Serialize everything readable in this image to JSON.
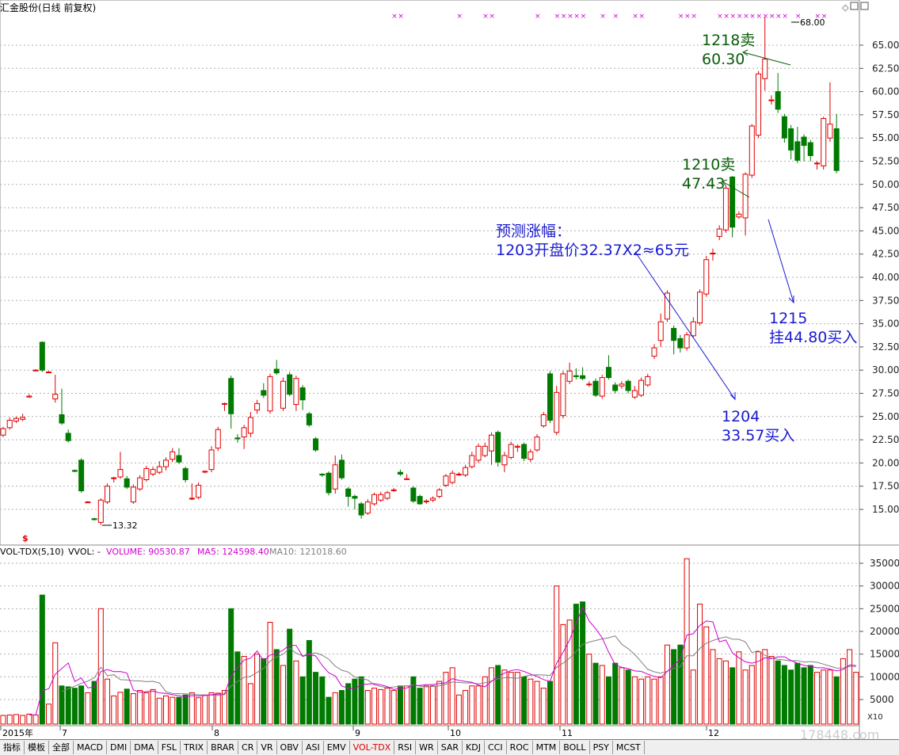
{
  "title": "汇金股份(日线 前复权)",
  "vol_header": {
    "name": "VOL-TDX(5,10)",
    "vvol": "VVOL: -",
    "volume": "VOLUME: 90530.87",
    "ma5": "MA5: 124598.40",
    "ma10": "MA10: 121018.60"
  },
  "price_axis": [
    "65.00",
    "62.50",
    "60.00",
    "57.50",
    "55.00",
    "52.50",
    "50.00",
    "47.50",
    "45.00",
    "42.50",
    "40.00",
    "37.50",
    "35.00",
    "32.50",
    "30.00",
    "27.50",
    "25.00",
    "22.50",
    "20.00",
    "17.50",
    "15.00"
  ],
  "vol_axis": [
    "35000",
    "30000",
    "25000",
    "20000",
    "15000",
    "10000",
    "5000"
  ],
  "vol_axis_unit": "X10",
  "month_labels": [
    "2015年",
    "7",
    "8",
    "9",
    "10",
    "11",
    "12"
  ],
  "price_labels": {
    "low": "13.32",
    "high": "68.00"
  },
  "annotations": {
    "a1218_l1": "1218卖",
    "a1218_l2": "60.30",
    "a1210_l1": "1210卖",
    "a1210_l2": "47.43",
    "pred_l1": "预测涨幅：",
    "pred_l2": "1203开盘价32.37X2≈65元",
    "a1215_l1": "1215",
    "a1215_l2": "挂44.80买入",
    "a1204_l1": "1204",
    "a1204_l2": "33.57买入"
  },
  "tabs": [
    "指标",
    "模板",
    "全部",
    "MACD",
    "DMI",
    "DMA",
    "FSL",
    "TRIX",
    "BRAR",
    "CR",
    "VR",
    "OBV",
    "ASI",
    "EMV",
    "VOL-TDX",
    "RSI",
    "WR",
    "SAR",
    "KDJ",
    "CCI",
    "ROC",
    "MTM",
    "BOLL",
    "PSY",
    "MCST"
  ],
  "active_tab": "VOL-TDX",
  "watermark": "178448.com",
  "colors": {
    "up": "#e00000",
    "down": "#007a00",
    "ma5": "#d000d0",
    "ma10": "#808080",
    "grid": "#b0b0b0"
  },
  "chart_data": [
    {
      "type": "candlestick",
      "title": "汇金股份(日线 前复权)",
      "ylim": [
        13,
        68
      ],
      "x": [
        "2015年",
        "7",
        "8",
        "9",
        "10",
        "11",
        "12"
      ],
      "candles": [
        {
          "o": 23.0,
          "c": 23.7,
          "h": 23.9,
          "l": 22.8
        },
        {
          "o": 23.8,
          "c": 24.6,
          "h": 24.9,
          "l": 23.6
        },
        {
          "o": 24.5,
          "c": 24.8,
          "h": 25.0,
          "l": 24.3
        },
        {
          "o": 24.7,
          "c": 24.9,
          "h": 25.3,
          "l": 24.5
        },
        {
          "o": 27.1,
          "c": 27.2,
          "h": 27.4,
          "l": 27.0
        },
        {
          "o": 30.0,
          "c": 30.0,
          "h": 30.1,
          "l": 29.9
        },
        {
          "o": 33.0,
          "c": 30.0,
          "h": 33.1,
          "l": 29.8
        },
        {
          "o": 29.8,
          "c": 29.8,
          "h": 29.9,
          "l": 29.7
        },
        {
          "o": 26.9,
          "c": 27.4,
          "h": 29.5,
          "l": 26.5
        },
        {
          "o": 25.2,
          "c": 24.3,
          "h": 28.0,
          "l": 24.1
        },
        {
          "o": 23.2,
          "c": 22.4,
          "h": 23.6,
          "l": 22.2
        },
        {
          "o": 19.2,
          "c": 19.1,
          "h": 19.3,
          "l": 19.0
        },
        {
          "o": 20.3,
          "c": 17.0,
          "h": 20.5,
          "l": 16.8
        },
        {
          "o": 15.8,
          "c": 15.8,
          "h": 15.9,
          "l": 15.7
        },
        {
          "o": 14.0,
          "c": 13.9,
          "h": 14.1,
          "l": 13.8
        },
        {
          "o": 13.6,
          "c": 16.0,
          "h": 16.2,
          "l": 13.32
        },
        {
          "o": 15.8,
          "c": 17.5,
          "h": 17.8,
          "l": 15.6
        },
        {
          "o": 18.4,
          "c": 18.4,
          "h": 18.5,
          "l": 17.9
        },
        {
          "o": 18.5,
          "c": 19.3,
          "h": 21.2,
          "l": 18.3
        },
        {
          "o": 18.3,
          "c": 17.4,
          "h": 18.6,
          "l": 17.2
        },
        {
          "o": 15.8,
          "c": 17.4,
          "h": 17.7,
          "l": 15.6
        },
        {
          "o": 17.2,
          "c": 18.4,
          "h": 18.7,
          "l": 17.0
        },
        {
          "o": 18.2,
          "c": 19.4,
          "h": 19.7,
          "l": 18.0
        },
        {
          "o": 18.8,
          "c": 19.3,
          "h": 19.6,
          "l": 18.6
        },
        {
          "o": 19.0,
          "c": 19.6,
          "h": 20.2,
          "l": 18.8
        },
        {
          "o": 19.6,
          "c": 20.3,
          "h": 20.6,
          "l": 19.2
        },
        {
          "o": 20.4,
          "c": 21.2,
          "h": 21.6,
          "l": 20.1
        },
        {
          "o": 20.8,
          "c": 20.1,
          "h": 21.6,
          "l": 19.9
        },
        {
          "o": 19.4,
          "c": 18.2,
          "h": 19.6,
          "l": 17.9
        },
        {
          "o": 16.2,
          "c": 16.2,
          "h": 17.8,
          "l": 16.0
        },
        {
          "o": 16.3,
          "c": 17.6,
          "h": 17.9,
          "l": 16.1
        },
        {
          "o": 19.1,
          "c": 19.1,
          "h": 19.2,
          "l": 18.9
        },
        {
          "o": 19.3,
          "c": 21.4,
          "h": 21.8,
          "l": 19.0
        },
        {
          "o": 21.6,
          "c": 23.6,
          "h": 23.9,
          "l": 21.3
        },
        {
          "o": 26.4,
          "c": 26.4,
          "h": 26.5,
          "l": 25.6
        },
        {
          "o": 29.1,
          "c": 25.3,
          "h": 29.4,
          "l": 23.7
        },
        {
          "o": 22.7,
          "c": 22.6,
          "h": 23.1,
          "l": 22.2
        },
        {
          "o": 22.8,
          "c": 23.8,
          "h": 24.1,
          "l": 21.5
        },
        {
          "o": 23.2,
          "c": 24.9,
          "h": 25.5,
          "l": 22.8
        },
        {
          "o": 25.7,
          "c": 26.4,
          "h": 26.8,
          "l": 25.3
        },
        {
          "o": 27.8,
          "c": 27.3,
          "h": 28.6,
          "l": 27.0
        },
        {
          "o": 25.6,
          "c": 29.3,
          "h": 29.6,
          "l": 25.3
        },
        {
          "o": 30.1,
          "c": 29.7,
          "h": 31.1,
          "l": 29.5
        },
        {
          "o": 25.9,
          "c": 28.8,
          "h": 29.2,
          "l": 25.6
        },
        {
          "o": 29.5,
          "c": 27.4,
          "h": 29.8,
          "l": 27.2
        },
        {
          "o": 26.3,
          "c": 29.1,
          "h": 29.4,
          "l": 25.6
        },
        {
          "o": 28.1,
          "c": 26.8,
          "h": 28.4,
          "l": 25.7
        },
        {
          "o": 25.3,
          "c": 24.1,
          "h": 25.5,
          "l": 23.9
        },
        {
          "o": 22.6,
          "c": 21.4,
          "h": 22.8,
          "l": 21.2
        },
        {
          "o": 18.8,
          "c": 18.7,
          "h": 18.9,
          "l": 18.5
        },
        {
          "o": 18.9,
          "c": 16.8,
          "h": 19.1,
          "l": 16.5
        },
        {
          "o": 17.2,
          "c": 19.8,
          "h": 20.8,
          "l": 16.7
        },
        {
          "o": 20.3,
          "c": 18.4,
          "h": 20.9,
          "l": 18.2
        },
        {
          "o": 17.2,
          "c": 16.4,
          "h": 17.4,
          "l": 15.3
        },
        {
          "o": 16.4,
          "c": 16.2,
          "h": 16.6,
          "l": 15.0
        },
        {
          "o": 15.6,
          "c": 14.4,
          "h": 15.8,
          "l": 14.0
        },
        {
          "o": 14.6,
          "c": 15.8,
          "h": 16.1,
          "l": 14.4
        },
        {
          "o": 15.6,
          "c": 16.6,
          "h": 16.8,
          "l": 15.4
        },
        {
          "o": 16.0,
          "c": 16.6,
          "h": 16.9,
          "l": 15.8
        },
        {
          "o": 16.2,
          "c": 16.8,
          "h": 17.0,
          "l": 16.0
        },
        {
          "o": 17.1,
          "c": 17.1,
          "h": 17.3,
          "l": 16.9
        },
        {
          "o": 19.0,
          "c": 18.8,
          "h": 19.3,
          "l": 18.6
        },
        {
          "o": 18.3,
          "c": 18.3,
          "h": 18.8,
          "l": 18.2
        },
        {
          "o": 17.3,
          "c": 15.9,
          "h": 17.5,
          "l": 15.7
        },
        {
          "o": 16.4,
          "c": 15.6,
          "h": 16.6,
          "l": 15.5
        },
        {
          "o": 15.9,
          "c": 15.9,
          "h": 16.1,
          "l": 15.6
        },
        {
          "o": 16.0,
          "c": 16.2,
          "h": 16.4,
          "l": 15.8
        },
        {
          "o": 16.4,
          "c": 17.1,
          "h": 17.3,
          "l": 16.2
        },
        {
          "o": 17.6,
          "c": 18.6,
          "h": 18.8,
          "l": 17.4
        },
        {
          "o": 17.9,
          "c": 18.9,
          "h": 19.2,
          "l": 17.7
        },
        {
          "o": 18.8,
          "c": 18.8,
          "h": 19.0,
          "l": 18.6
        },
        {
          "o": 18.7,
          "c": 19.5,
          "h": 19.8,
          "l": 18.5
        },
        {
          "o": 19.6,
          "c": 20.8,
          "h": 21.2,
          "l": 19.4
        },
        {
          "o": 20.3,
          "c": 21.8,
          "h": 22.1,
          "l": 20.0
        },
        {
          "o": 20.8,
          "c": 21.8,
          "h": 22.2,
          "l": 20.6
        },
        {
          "o": 21.3,
          "c": 23.0,
          "h": 23.3,
          "l": 19.8
        },
        {
          "o": 23.3,
          "c": 20.1,
          "h": 23.5,
          "l": 19.6
        },
        {
          "o": 19.8,
          "c": 20.8,
          "h": 21.2,
          "l": 19.0
        },
        {
          "o": 20.6,
          "c": 22.0,
          "h": 22.3,
          "l": 20.4
        },
        {
          "o": 21.7,
          "c": 21.8,
          "h": 22.0,
          "l": 21.2
        },
        {
          "o": 22.0,
          "c": 20.5,
          "h": 22.2,
          "l": 20.2
        },
        {
          "o": 20.4,
          "c": 21.2,
          "h": 21.5,
          "l": 20.1
        },
        {
          "o": 21.4,
          "c": 22.8,
          "h": 23.1,
          "l": 21.2
        },
        {
          "o": 24.0,
          "c": 25.2,
          "h": 25.5,
          "l": 23.8
        },
        {
          "o": 29.6,
          "c": 24.6,
          "h": 29.9,
          "l": 24.3
        },
        {
          "o": 23.3,
          "c": 27.6,
          "h": 28.3,
          "l": 23.0
        },
        {
          "o": 25.1,
          "c": 29.6,
          "h": 29.9,
          "l": 24.8
        },
        {
          "o": 28.8,
          "c": 29.9,
          "h": 30.8,
          "l": 28.5
        },
        {
          "o": 29.4,
          "c": 29.3,
          "h": 30.2,
          "l": 29.0
        },
        {
          "o": 29.4,
          "c": 29.1,
          "h": 30.3,
          "l": 28.9
        },
        {
          "o": 28.5,
          "c": 28.5,
          "h": 28.8,
          "l": 28.2
        },
        {
          "o": 28.8,
          "c": 27.3,
          "h": 29.1,
          "l": 27.1
        },
        {
          "o": 27.2,
          "c": 29.2,
          "h": 29.5,
          "l": 26.9
        },
        {
          "o": 30.3,
          "c": 29.2,
          "h": 31.6,
          "l": 29.0
        },
        {
          "o": 28.4,
          "c": 27.8,
          "h": 28.7,
          "l": 27.5
        },
        {
          "o": 28.3,
          "c": 28.5,
          "h": 28.8,
          "l": 28.0
        },
        {
          "o": 28.8,
          "c": 27.8,
          "h": 29.0,
          "l": 27.5
        },
        {
          "o": 27.1,
          "c": 27.8,
          "h": 28.3,
          "l": 26.9
        },
        {
          "o": 27.3,
          "c": 28.9,
          "h": 29.2,
          "l": 27.1
        },
        {
          "o": 28.4,
          "c": 29.3,
          "h": 29.6,
          "l": 28.2
        },
        {
          "o": 31.5,
          "c": 32.4,
          "h": 32.8,
          "l": 31.2
        },
        {
          "o": 33.2,
          "c": 35.2,
          "h": 36.1,
          "l": 32.5
        },
        {
          "o": 35.5,
          "c": 38.3,
          "h": 38.6,
          "l": 35.2
        },
        {
          "o": 34.5,
          "c": 33.2,
          "h": 34.8,
          "l": 31.7
        },
        {
          "o": 33.4,
          "c": 32.4,
          "h": 33.8,
          "l": 31.9
        },
        {
          "o": 32.4,
          "c": 33.8,
          "h": 34.1,
          "l": 32.1
        },
        {
          "o": 33.7,
          "c": 35.2,
          "h": 35.7,
          "l": 33.5
        },
        {
          "o": 35.1,
          "c": 38.4,
          "h": 38.7,
          "l": 34.8
        },
        {
          "o": 38.2,
          "c": 41.9,
          "h": 42.3,
          "l": 37.9
        },
        {
          "o": 42.6,
          "c": 42.6,
          "h": 43.1,
          "l": 41.8
        },
        {
          "o": 44.4,
          "c": 45.2,
          "h": 45.6,
          "l": 44.0
        },
        {
          "o": 45.1,
          "c": 49.6,
          "h": 49.9,
          "l": 44.8
        },
        {
          "o": 50.8,
          "c": 45.4,
          "h": 50.9,
          "l": 44.3
        },
        {
          "o": 46.5,
          "c": 46.8,
          "h": 47.1,
          "l": 46.3
        },
        {
          "o": 46.4,
          "c": 51.1,
          "h": 51.3,
          "l": 44.5
        },
        {
          "o": 51.0,
          "c": 56.3,
          "h": 56.5,
          "l": 50.7
        },
        {
          "o": 55.3,
          "c": 61.9,
          "h": 62.2,
          "l": 55.0
        },
        {
          "o": 61.4,
          "c": 63.5,
          "h": 68.0,
          "l": 60.1
        },
        {
          "o": 59.1,
          "c": 59.1,
          "h": 59.6,
          "l": 58.6
        },
        {
          "o": 60.0,
          "c": 58.1,
          "h": 62.0,
          "l": 57.7
        },
        {
          "o": 57.3,
          "c": 55.0,
          "h": 57.6,
          "l": 54.5
        },
        {
          "o": 56.0,
          "c": 53.7,
          "h": 56.4,
          "l": 52.7
        },
        {
          "o": 54.6,
          "c": 52.6,
          "h": 56.2,
          "l": 52.3
        },
        {
          "o": 55.1,
          "c": 54.2,
          "h": 55.4,
          "l": 52.5
        },
        {
          "o": 54.5,
          "c": 53.1,
          "h": 54.8,
          "l": 52.5
        },
        {
          "o": 52.3,
          "c": 52.3,
          "h": 52.5,
          "l": 51.6
        },
        {
          "o": 52.0,
          "c": 57.1,
          "h": 57.3,
          "l": 51.6
        },
        {
          "o": 55.0,
          "c": 56.5,
          "h": 61.0,
          "l": 54.6
        },
        {
          "o": 56.0,
          "c": 51.5,
          "h": 57.6,
          "l": 51.2
        }
      ]
    },
    {
      "type": "bar",
      "title": "VOL-TDX(5,10)",
      "ylim": [
        0,
        36000
      ],
      "volumes": [
        1500,
        1600,
        1700,
        1500,
        1800,
        1600,
        28000,
        4000,
        17500,
        8000,
        7800,
        7500,
        8000,
        6500,
        9000,
        25000,
        9500,
        5800,
        6600,
        7300,
        6300,
        7000,
        6500,
        7200,
        5300,
        5800,
        5500,
        5500,
        6000,
        6500,
        5400,
        6000,
        6500,
        6400,
        7000,
        25000,
        15500,
        14500,
        8500,
        15000,
        14000,
        22000,
        16000,
        12500,
        20500,
        13500,
        10000,
        18000,
        11000,
        10000,
        5500,
        6500,
        7000,
        8500,
        9500,
        10000,
        7000,
        7500,
        7200,
        7500,
        7000,
        8000,
        8000,
        10000,
        7500,
        8000,
        8000,
        9000,
        11000,
        12000,
        6000,
        7000,
        8000,
        8000,
        10000,
        12000,
        12500,
        11500,
        11000,
        11000,
        10000,
        9500,
        9000,
        7500,
        9000,
        30000,
        21500,
        22500,
        26000,
        26500,
        15000,
        13000,
        12500,
        10000,
        13000,
        12000,
        11500,
        10000,
        9500,
        10000,
        9500,
        10000,
        17000,
        16000,
        17000,
        36000,
        11500,
        26000,
        21000,
        16000,
        14000,
        13500,
        12000,
        15500,
        11500,
        12500,
        15500,
        16000,
        14500,
        13500,
        12500,
        11500,
        13000,
        12000,
        12500,
        11000,
        11500,
        11500,
        10000,
        14000,
        16000,
        11000
      ],
      "series": [
        {
          "name": "VOLUME",
          "color": "#e00000"
        },
        {
          "name": "MA5",
          "color": "#d000d0"
        },
        {
          "name": "MA10",
          "color": "#808080"
        }
      ]
    }
  ]
}
